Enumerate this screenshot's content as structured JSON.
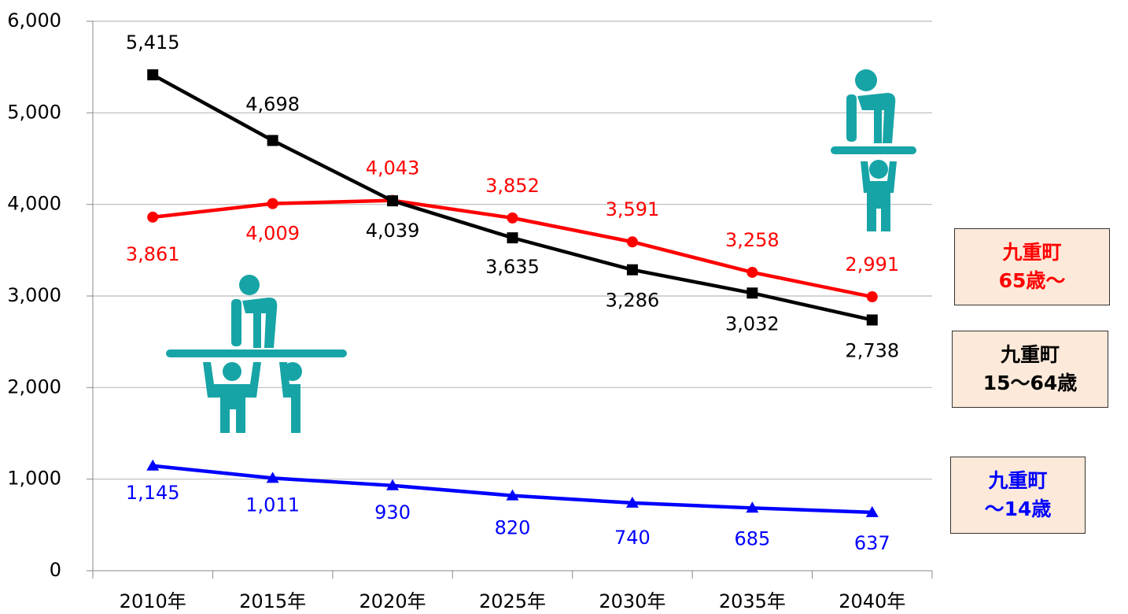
{
  "chart_data": {
    "type": "line",
    "categories": [
      "2010年",
      "2015年",
      "2020年",
      "2025年",
      "2030年",
      "2035年",
      "2040年"
    ],
    "series": [
      {
        "name": "九重町\n65歳～",
        "color": "#ff0000",
        "marker": "circle",
        "values": [
          3861,
          4009,
          4043,
          3852,
          3591,
          3258,
          2991
        ],
        "value_labels": [
          "3,861",
          "4,009",
          "4,043",
          "3,852",
          "3,591",
          "3,258",
          "2,991"
        ]
      },
      {
        "name": "九重町\n15～64歳",
        "color": "#000000",
        "marker": "square",
        "values": [
          5415,
          4698,
          4039,
          3635,
          3286,
          3032,
          2738
        ],
        "value_labels": [
          "5,415",
          "4,698",
          "4,039",
          "3,635",
          "3,286",
          "3,032",
          "2,738"
        ]
      },
      {
        "name": "九重町\n～14歳",
        "color": "#0000ff",
        "marker": "triangle",
        "values": [
          1145,
          1011,
          930,
          820,
          740,
          685,
          637
        ],
        "value_labels": [
          "1,145",
          "1,011",
          "930",
          "820",
          "740",
          "685",
          "637"
        ]
      }
    ],
    "ylim": [
      0,
      6000
    ],
    "yticks": [
      0,
      {
        "value": 1000,
        "label": "1,000"
      },
      {
        "value": 2000,
        "label": "2,000"
      },
      {
        "value": 3000,
        "label": "3,000"
      },
      {
        "value": 4000,
        "label": "4,000"
      },
      {
        "value": 5000,
        "label": "5,000"
      },
      {
        "value": 6000,
        "label": "6,000"
      }
    ],
    "grid": true
  }
}
